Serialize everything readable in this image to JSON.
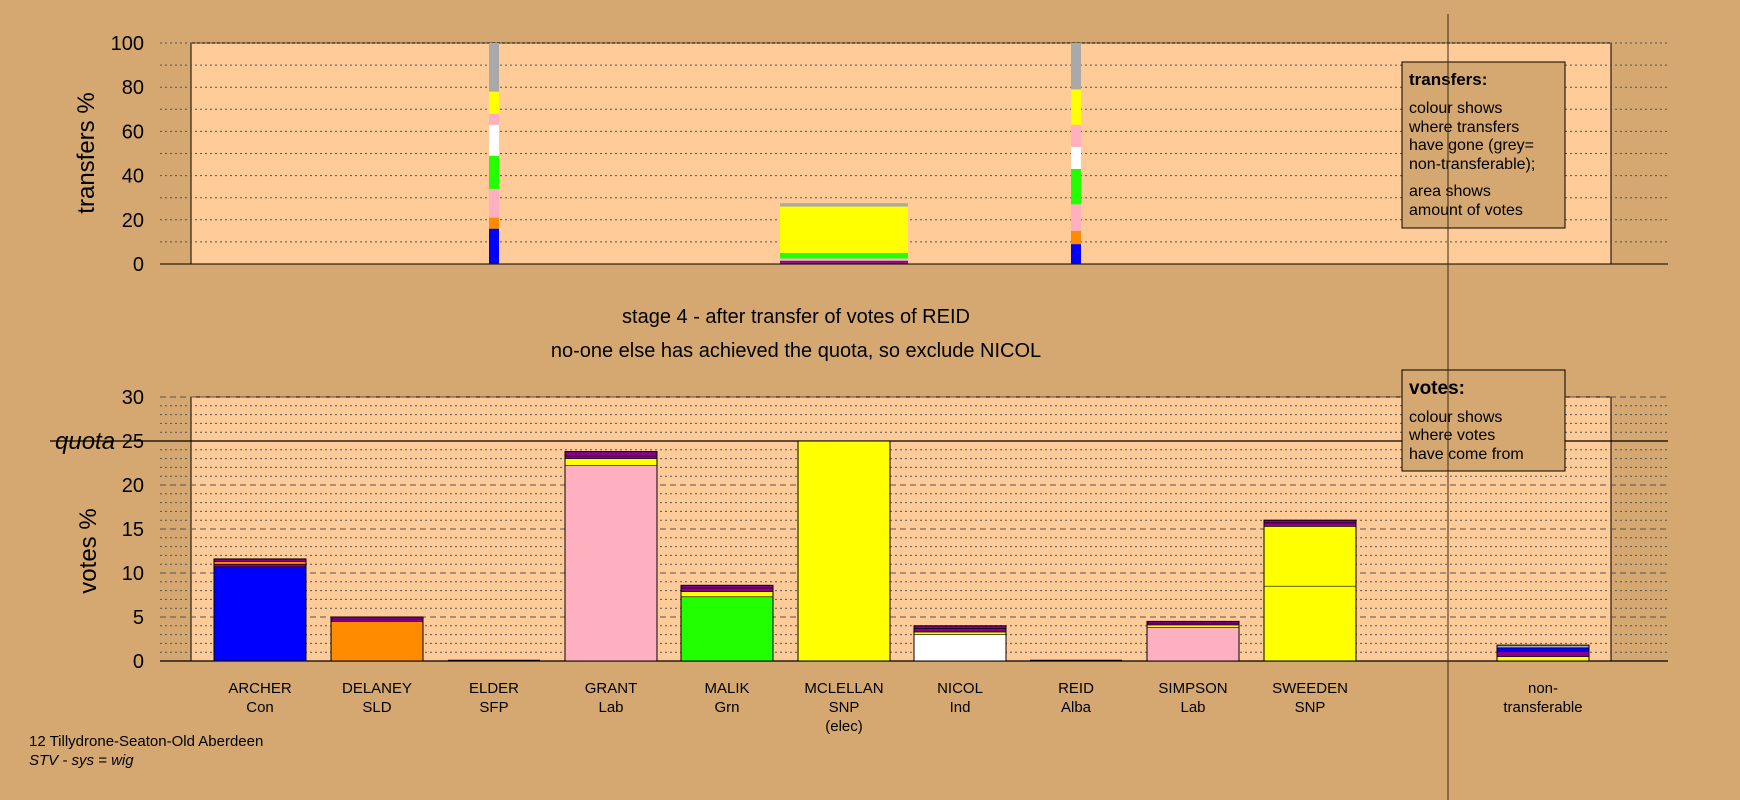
{
  "colors": {
    "page_bg": "#D4A870",
    "plot_bg": "#FFCC99",
    "legend_bg": "#D4A870",
    "ARCHER": "#0000FF",
    "DELANEY": "#FF8C00",
    "ELDER": "#8B008B",
    "GRANT": "#FFB0C0",
    "MALIK": "#22FF00",
    "MCLELLAN": "#FFFF00",
    "NICOL": "#FFFFFF",
    "REID": "#8B008B",
    "SIMPSON": "#FFB0C0",
    "SWEEDEN": "#FFFF00",
    "nontransferable": "#A9A9A9"
  },
  "titles": {
    "line1": "stage 4 - after transfer of votes of REID",
    "line2": "no-one else has achieved the quota, so exclude NICOL"
  },
  "footer": {
    "line1": "12 Tillydrone-Seaton-Old Aberdeen",
    "line2": "STV - sys = wig"
  },
  "legend_transfers": {
    "title": "transfers:",
    "text1": [
      "colour shows",
      "where transfers",
      "have gone (grey=",
      "non-transferable);"
    ],
    "text2": [
      "area shows",
      "amount of votes"
    ]
  },
  "legend_votes": {
    "title": "votes:",
    "text1": [
      "colour shows",
      "where votes",
      "have come from"
    ]
  },
  "chart_data": [
    {
      "type": "bar",
      "ylabel": "transfers %",
      "ylim": [
        0,
        100
      ],
      "yticks": [
        0,
        20,
        40,
        60,
        80,
        100
      ],
      "grid": true,
      "bars": [
        {
          "candidate": "ELDER",
          "segments": [
            {
              "to": "ARCHER",
              "value": 16
            },
            {
              "to": "DELANEY",
              "value": 5
            },
            {
              "to": "GRANT",
              "value": 13
            },
            {
              "to": "MALIK",
              "value": 15
            },
            {
              "to": "NICOL",
              "value": 14
            },
            {
              "to": "SIMPSON",
              "value": 5
            },
            {
              "to": "SWEEDEN",
              "value": 10
            },
            {
              "to": "nontransferable",
              "value": 22
            }
          ]
        },
        {
          "candidate": "MCLELLAN",
          "wide": true,
          "segments": [
            {
              "to": "ARCHER",
              "value": 0.5
            },
            {
              "to": "ELDER",
              "value": 1
            },
            {
              "to": "GRANT",
              "value": 1
            },
            {
              "to": "MALIK",
              "value": 2.5
            },
            {
              "to": "SWEEDEN",
              "value": 21
            },
            {
              "to": "nontransferable",
              "value": 1.5
            }
          ]
        },
        {
          "candidate": "REID",
          "segments": [
            {
              "to": "ARCHER",
              "value": 9
            },
            {
              "to": "DELANEY",
              "value": 6
            },
            {
              "to": "GRANT",
              "value": 12
            },
            {
              "to": "MALIK",
              "value": 16
            },
            {
              "to": "NICOL",
              "value": 10
            },
            {
              "to": "SIMPSON",
              "value": 10
            },
            {
              "to": "SWEEDEN",
              "value": 16
            },
            {
              "to": "nontransferable",
              "value": 21
            }
          ]
        }
      ]
    },
    {
      "type": "bar",
      "ylabel": "votes %",
      "ylim": [
        0,
        30
      ],
      "yticks": [
        0,
        5,
        10,
        15,
        20,
        25,
        30
      ],
      "quota": 25,
      "quota_label": "quota",
      "grid": true,
      "categories": [
        {
          "name": "ARCHER",
          "party": "Con",
          "note": "",
          "color": "#0000FF",
          "total": 11.6,
          "segments": [
            {
              "value": 10.7,
              "color": "#0000FF"
            },
            {
              "value": 0.3,
              "color": "#8B008B"
            },
            {
              "value": 0.3,
              "color": "#FF8C00"
            },
            {
              "value": 0.3,
              "color": "#8B008B"
            }
          ]
        },
        {
          "name": "DELANEY",
          "party": "SLD",
          "note": "",
          "color": "#FF8C00",
          "total": 5.0,
          "segments": [
            {
              "value": 4.5,
              "color": "#FF8C00"
            },
            {
              "value": 0.25,
              "color": "#8B008B"
            },
            {
              "value": 0.25,
              "color": "#8B008B"
            }
          ]
        },
        {
          "name": "ELDER",
          "party": "SFP",
          "note": "",
          "color": "#8B008B",
          "total": 0,
          "segments": []
        },
        {
          "name": "GRANT",
          "party": "Lab",
          "note": "",
          "color": "#FFB0C0",
          "total": 23.8,
          "segments": [
            {
              "value": 22.2,
              "color": "#FFB0C0"
            },
            {
              "value": 0.8,
              "color": "#FFFF00"
            },
            {
              "value": 0.3,
              "color": "#8B008B"
            },
            {
              "value": 0.5,
              "color": "#8B008B"
            }
          ]
        },
        {
          "name": "MALIK",
          "party": "Grn",
          "note": "",
          "color": "#22FF00",
          "total": 8.6,
          "segments": [
            {
              "value": 7.3,
              "color": "#22FF00"
            },
            {
              "value": 0.6,
              "color": "#FFFF00"
            },
            {
              "value": 0.4,
              "color": "#8B008B"
            },
            {
              "value": 0.3,
              "color": "#8B008B"
            }
          ]
        },
        {
          "name": "MCLELLAN",
          "party": "SNP",
          "note": "(elec)",
          "color": "#FFFF00",
          "total": 25.0,
          "segments": [
            {
              "value": 25.0,
              "color": "#FFFF00"
            }
          ]
        },
        {
          "name": "NICOL",
          "party": "Ind",
          "note": "",
          "color": "#FFFFFF",
          "total": 4.0,
          "segments": [
            {
              "value": 3.0,
              "color": "#FFFFFF"
            },
            {
              "value": 0.3,
              "color": "#FFFF00"
            },
            {
              "value": 0.4,
              "color": "#8B008B"
            },
            {
              "value": 0.3,
              "color": "#8B008B"
            }
          ]
        },
        {
          "name": "REID",
          "party": "Alba",
          "note": "",
          "color": "#8B008B",
          "total": 0,
          "segments": []
        },
        {
          "name": "SIMPSON",
          "party": "Lab",
          "note": "",
          "color": "#FFB0C0",
          "total": 4.5,
          "segments": [
            {
              "value": 3.8,
              "color": "#FFB0C0"
            },
            {
              "value": 0.3,
              "color": "#FFFF00"
            },
            {
              "value": 0.2,
              "color": "#8B008B"
            },
            {
              "value": 0.2,
              "color": "#8B008B"
            }
          ]
        },
        {
          "name": "SWEEDEN",
          "party": "SNP",
          "note": "",
          "color": "#FFFF00",
          "total": 16.0,
          "segments": [
            {
              "value": 8.5,
              "color": "#FFFF00"
            },
            {
              "value": 6.8,
              "color": "#FFFF00"
            },
            {
              "value": 0.4,
              "color": "#8B008B"
            },
            {
              "value": 0.3,
              "color": "#8B008B"
            }
          ]
        },
        {
          "name": "non-",
          "party": "transferable",
          "note": "",
          "color": "#A9A9A9",
          "total": 1.8,
          "segments": [
            {
              "value": 0.5,
              "color": "#FFFF00"
            },
            {
              "value": 0.6,
              "color": "#8B008B"
            },
            {
              "value": 0.4,
              "color": "#0000FF"
            },
            {
              "value": 0.3,
              "color": "#A9A9A9"
            }
          ]
        }
      ]
    }
  ]
}
